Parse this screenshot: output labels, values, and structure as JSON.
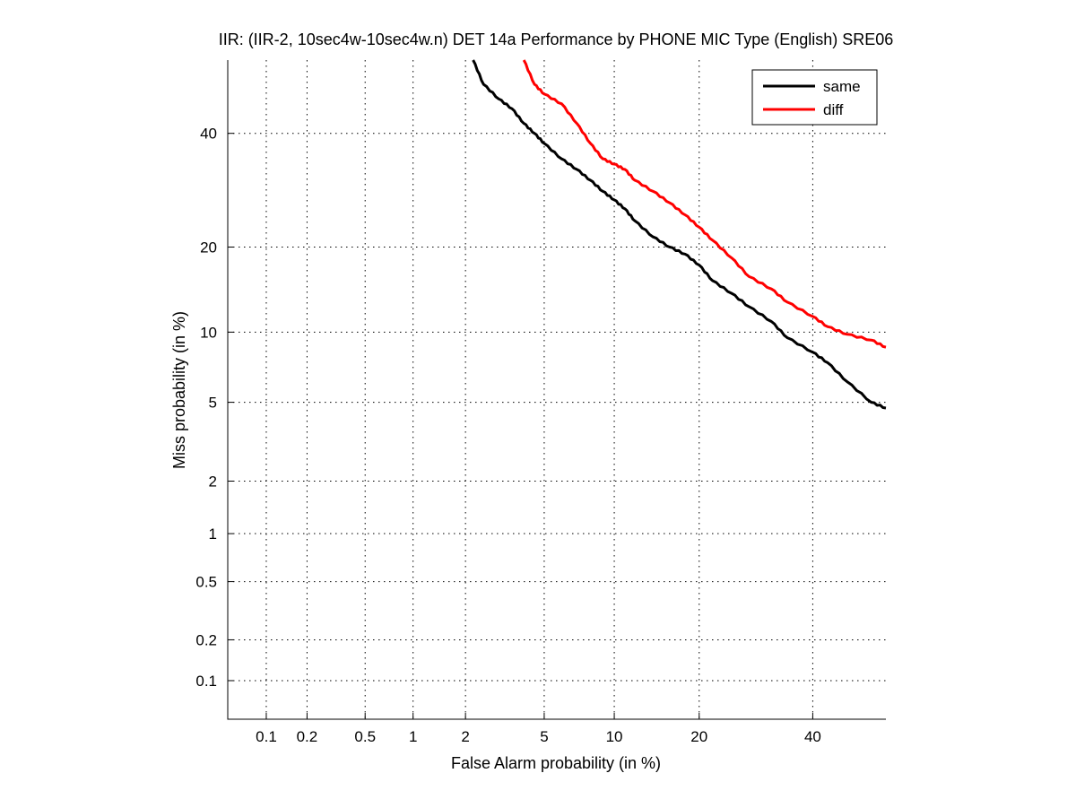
{
  "chart_data": {
    "type": "line",
    "title": "IIR: (IIR-2, 10sec4w-10sec4w.n) DET 14a Performance by PHONE MIC Type (English) SRE06",
    "xlabel": "False Alarm probability (in %)",
    "ylabel": "Miss probability (in %)",
    "x_scale": "normal-deviate",
    "y_scale": "normal-deviate",
    "xlim": [
      0.05,
      55
    ],
    "ylim": [
      0.05,
      55
    ],
    "x_ticks": [
      0.1,
      0.2,
      0.5,
      1,
      2,
      5,
      10,
      20,
      40
    ],
    "x_tick_labels": [
      "0.1",
      "0.2",
      "0.5",
      "1",
      "2",
      "5",
      "10",
      "20",
      "40"
    ],
    "y_ticks": [
      0.1,
      0.2,
      0.5,
      1,
      2,
      5,
      10,
      20,
      40
    ],
    "y_tick_labels": [
      "0.1",
      "0.2",
      "0.5",
      "1",
      "2",
      "5",
      "10",
      "20",
      "40"
    ],
    "grid": true,
    "legend_position": "top-right",
    "series": [
      {
        "name": "same",
        "color": "#000000",
        "x": [
          2.2,
          2.5,
          3.0,
          3.5,
          4.0,
          4.5,
          5.0,
          6.0,
          7.0,
          8.0,
          9.0,
          10.0,
          11.0,
          12.0,
          14.0,
          16.0,
          18.0,
          20.0,
          22.0,
          25.0,
          28.0,
          32.0,
          35.0,
          40.0,
          43.0,
          47.0,
          52.0,
          55.0
        ],
        "y": [
          55,
          50,
          47,
          45,
          42,
          40,
          38,
          35,
          33,
          31,
          29,
          27.5,
          26,
          24,
          21.5,
          20,
          19,
          17.5,
          15.5,
          14,
          12.5,
          11,
          9.5,
          8.3,
          7.5,
          6.2,
          5.0,
          4.7
        ]
      },
      {
        "name": "diff",
        "color": "#ff0000",
        "x": [
          4.0,
          4.5,
          5.0,
          6.0,
          7.0,
          8.0,
          9.0,
          10.0,
          11.0,
          12.0,
          14.0,
          16.0,
          18.0,
          20.0,
          22.0,
          25.0,
          28.0,
          32.0,
          35.0,
          40.0,
          43.0,
          47.0,
          52.0,
          55.0
        ],
        "y": [
          55,
          50,
          48,
          46,
          42,
          38,
          35,
          34,
          33,
          31,
          29,
          27,
          25,
          23,
          21,
          18.5,
          16,
          14.5,
          13,
          11.5,
          10.5,
          9.8,
          9.3,
          8.7
        ]
      }
    ]
  }
}
